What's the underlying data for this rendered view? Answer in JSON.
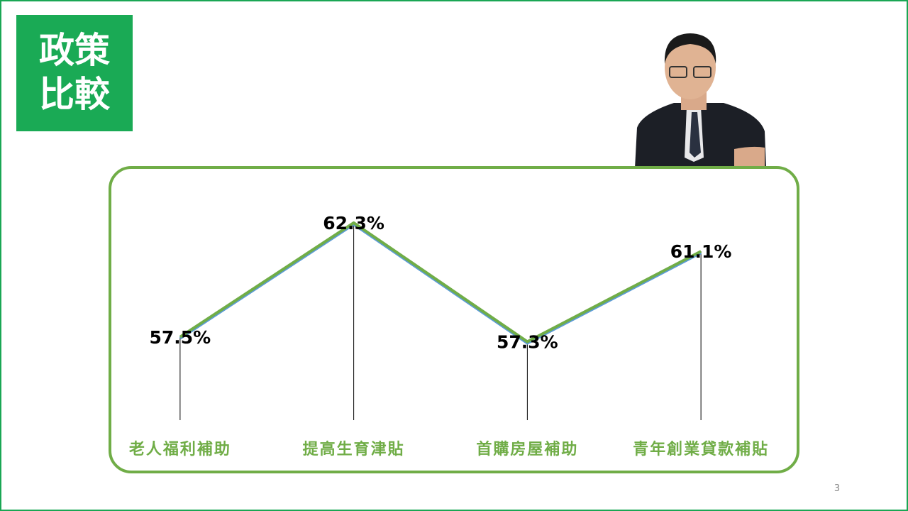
{
  "title_box": {
    "lines": [
      "政策",
      "比較"
    ]
  },
  "chart_data": {
    "type": "line",
    "categories": [
      "老人福利補助",
      "提高生育津貼",
      "首購房屋補助",
      "青年創業貸款補貼"
    ],
    "values": [
      57.5,
      62.3,
      57.3,
      61.1
    ],
    "value_labels": [
      "57.5%",
      "62.3%",
      "57.3%",
      "61.1%"
    ],
    "color": "#70ad47",
    "ylim": [
      54,
      64
    ]
  },
  "page_number": "3"
}
